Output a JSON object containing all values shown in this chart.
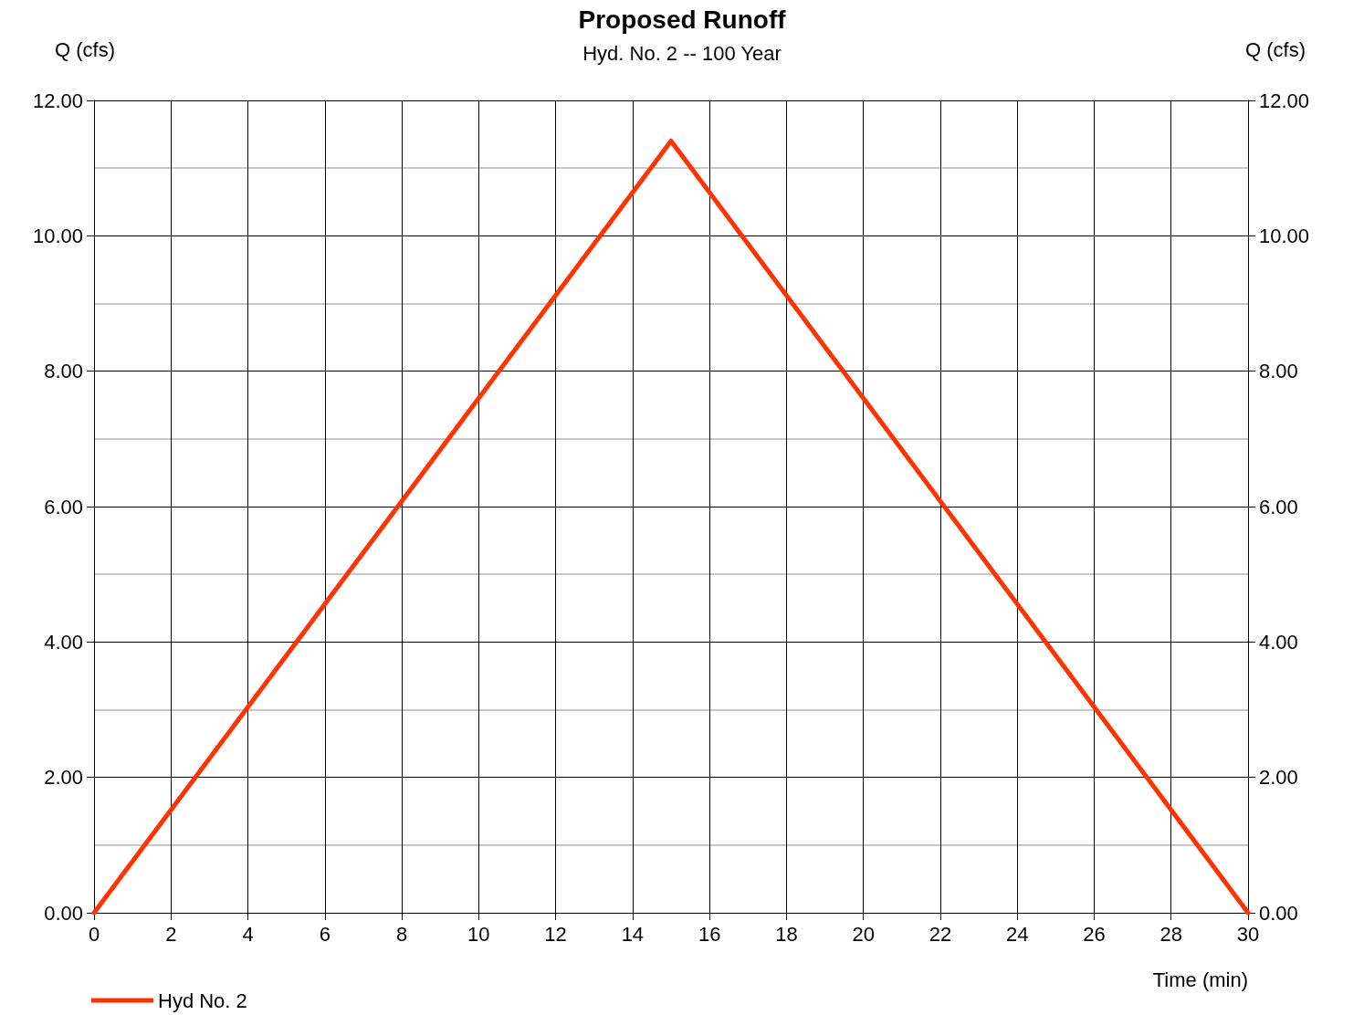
{
  "chart_data": {
    "type": "line",
    "title": "Proposed Runoff",
    "subtitle": "Hyd. No. 2 -- 100 Year",
    "xlabel": "Time (min)",
    "ylabel": "Q (cfs)",
    "y2label": "Q (cfs)",
    "x": [
      0,
      15,
      30
    ],
    "series": [
      {
        "name": "Hyd No. 2",
        "color": "#ff3300",
        "values": [
          0,
          11.4,
          0
        ]
      }
    ],
    "xlim": [
      0,
      30
    ],
    "xticks": [
      0,
      2,
      4,
      6,
      8,
      10,
      12,
      14,
      16,
      18,
      20,
      22,
      24,
      26,
      28,
      30
    ],
    "ylim": [
      0,
      12
    ],
    "yticks": [
      {
        "value": 0,
        "label": "0.00"
      },
      {
        "value": 2,
        "label": "2.00"
      },
      {
        "value": 4,
        "label": "4.00"
      },
      {
        "value": 6,
        "label": "6.00"
      },
      {
        "value": 8,
        "label": "8.00"
      },
      {
        "value": 10,
        "label": "10.00"
      },
      {
        "value": 12,
        "label": "12.00"
      }
    ],
    "y2lim": [
      0,
      12
    ],
    "y2ticks": [
      {
        "value": 0,
        "label": "0.00"
      },
      {
        "value": 2,
        "label": "2.00"
      },
      {
        "value": 4,
        "label": "4.00"
      },
      {
        "value": 6,
        "label": "6.00"
      },
      {
        "value": 8,
        "label": "8.00"
      },
      {
        "value": 10,
        "label": "10.00"
      },
      {
        "value": 12,
        "label": "12.00"
      }
    ],
    "grid": true,
    "legend": "bottom left",
    "marker": "none",
    "line_style": "solid"
  }
}
